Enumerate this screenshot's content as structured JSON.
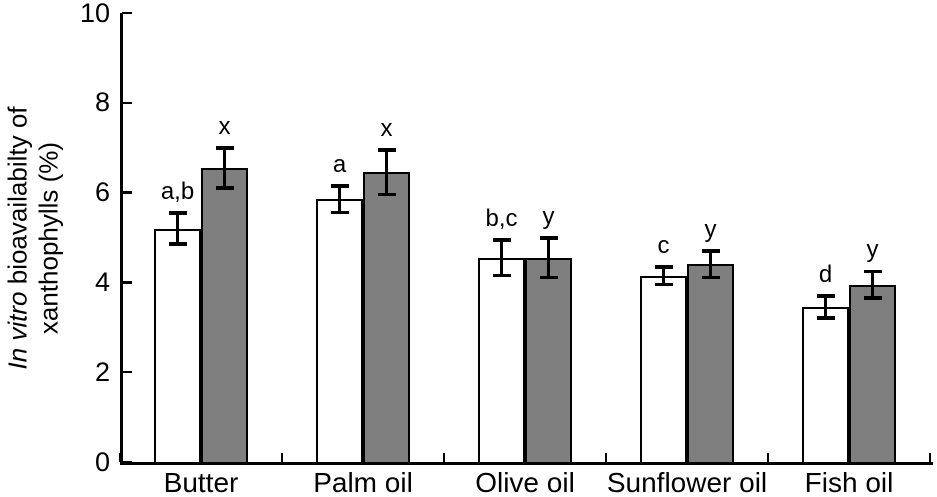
{
  "figure": {
    "background": "#ffffff",
    "axis_color": "#000000"
  },
  "ylabel": {
    "line1_italic": "In vitro",
    "line1_rest": " bioavailabilty of",
    "line2": "xanthophylls (%)"
  },
  "chart_data": {
    "type": "bar",
    "title": "",
    "xlabel": "",
    "ylabel": "In vitro bioavailabilty of xanthophylls (%)",
    "categories": [
      "Butter",
      "Palm oil",
      "Olive oil",
      "Sunflower oil",
      "Fish oil"
    ],
    "series": [
      {
        "name": "open bars",
        "fill": "#ffffff",
        "border": "#000000",
        "values": [
          5.2,
          5.85,
          4.55,
          4.15,
          3.45
        ],
        "errors": [
          0.35,
          0.3,
          0.4,
          0.2,
          0.25
        ],
        "sig_labels": [
          "a,b",
          "a",
          "b,c",
          "c",
          "d"
        ]
      },
      {
        "name": "grey bars",
        "fill": "#7f7f7f",
        "border": "#000000",
        "values": [
          6.55,
          6.45,
          4.55,
          4.4,
          3.95
        ],
        "errors": [
          0.45,
          0.5,
          0.45,
          0.3,
          0.3
        ],
        "sig_labels": [
          "x",
          "x",
          "y",
          "y",
          "y"
        ]
      }
    ],
    "ylim": [
      0,
      10
    ],
    "yticks": [
      0,
      2,
      4,
      6,
      8,
      10
    ],
    "grid": false,
    "legend_position": "none",
    "error_bars": true
  }
}
